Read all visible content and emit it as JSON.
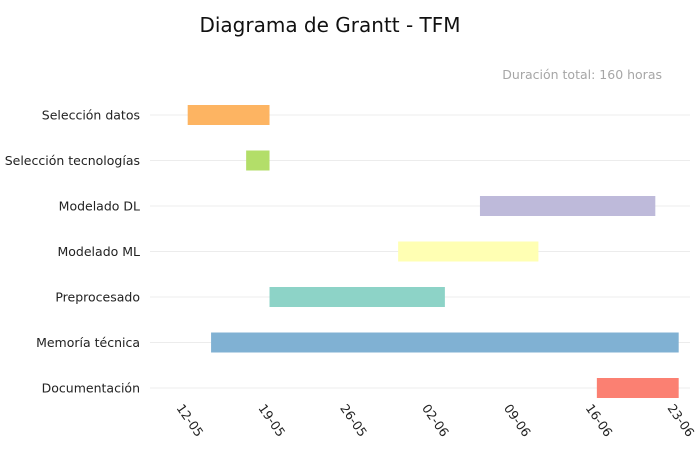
{
  "chart_data": {
    "type": "gantt",
    "title": "Diagrama de Grantt - TFM",
    "subtitle": "Duración total: 160 horas",
    "x_axis": {
      "type": "date",
      "range": [
        "2023-05-12",
        "2023-06-23"
      ],
      "ticks": [
        {
          "date": "2023-05-12",
          "label": "12-05"
        },
        {
          "date": "2023-05-19",
          "label": "19-05"
        },
        {
          "date": "2023-05-26",
          "label": "26-05"
        },
        {
          "date": "2023-06-02",
          "label": "02-06"
        },
        {
          "date": "2023-06-09",
          "label": "09-06"
        },
        {
          "date": "2023-06-16",
          "label": "16-06"
        },
        {
          "date": "2023-06-23",
          "label": "23-06"
        }
      ]
    },
    "grid": true,
    "tasks": [
      {
        "name": "Selección datos",
        "start": "2023-05-13",
        "end": "2023-05-20",
        "color": "#fdb462"
      },
      {
        "name": "Selección tecnologías",
        "start": "2023-05-18",
        "end": "2023-05-20",
        "color": "#b3de69"
      },
      {
        "name": "Modelado DL",
        "start": "2023-06-07",
        "end": "2023-06-22",
        "color": "#bebada"
      },
      {
        "name": "Modelado ML",
        "start": "2023-05-31",
        "end": "2023-06-12",
        "color": "#ffffb3"
      },
      {
        "name": "Preprocesado",
        "start": "2023-05-20",
        "end": "2023-06-04",
        "color": "#8dd3c7"
      },
      {
        "name": "Memoría técnica",
        "start": "2023-05-15",
        "end": "2023-06-24",
        "color": "#80b1d3"
      },
      {
        "name": "Documentación",
        "start": "2023-06-17",
        "end": "2023-06-24",
        "color": "#fb8072"
      }
    ]
  }
}
